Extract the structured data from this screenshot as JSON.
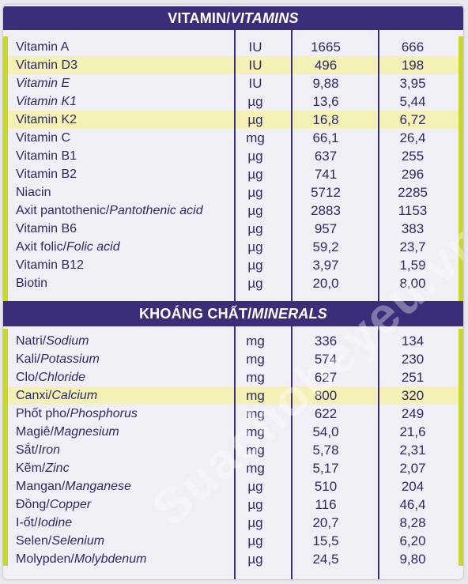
{
  "vitamins": {
    "title_main": "VITAMIN/",
    "title_italic": "VITAMINS",
    "rows": [
      {
        "name": "Vitamin A",
        "name_it": "",
        "unit": "IU",
        "v1": "1665",
        "v2": "666",
        "hl": false
      },
      {
        "name": "Vitamin D3",
        "name_it": "",
        "unit": "IU",
        "v1": "496",
        "v2": "198",
        "hl": true
      },
      {
        "name": "",
        "name_it": "Vitamin E",
        "unit": "IU",
        "v1": "9,88",
        "v2": "3,95",
        "hl": false
      },
      {
        "name": "",
        "name_it": "Vitamin K1",
        "unit": "µg",
        "v1": "13,6",
        "v2": "5,44",
        "hl": false
      },
      {
        "name": "Vitamin K2",
        "name_it": "",
        "unit": "µg",
        "v1": "16,8",
        "v2": "6,72",
        "hl": true
      },
      {
        "name": "Vitamin C",
        "name_it": "",
        "unit": "mg",
        "v1": "66,1",
        "v2": "26,4",
        "hl": false
      },
      {
        "name": "Vitamin B1",
        "name_it": "",
        "unit": "µg",
        "v1": "637",
        "v2": "255",
        "hl": false
      },
      {
        "name": "Vitamin B2",
        "name_it": "",
        "unit": "µg",
        "v1": "741",
        "v2": "296",
        "hl": false
      },
      {
        "name": "Niacin",
        "name_it": "",
        "unit": "µg",
        "v1": "5712",
        "v2": "2285",
        "hl": false
      },
      {
        "name": "Axit pantothenic/",
        "name_it": "Pantothenic acid",
        "unit": "µg",
        "v1": "2883",
        "v2": "1153",
        "hl": false
      },
      {
        "name": "Vitamin B6",
        "name_it": "",
        "unit": "µg",
        "v1": "957",
        "v2": "383",
        "hl": false
      },
      {
        "name": "Axit folic/",
        "name_it": "Folic acid",
        "unit": "µg",
        "v1": "59,2",
        "v2": "23,7",
        "hl": false
      },
      {
        "name": "Vitamin B12",
        "name_it": "",
        "unit": "µg",
        "v1": "3,97",
        "v2": "1,59",
        "hl": false
      },
      {
        "name": "Biotin",
        "name_it": "",
        "unit": "µg",
        "v1": "20,0",
        "v2": "8,00",
        "hl": false
      }
    ]
  },
  "minerals": {
    "title_main": "KHOÁNG CHẤT/",
    "title_italic": "MINERALS",
    "rows": [
      {
        "name": "Natri/",
        "name_it": "Sodium",
        "unit": "mg",
        "v1": "336",
        "v2": "134",
        "hl": false
      },
      {
        "name": "Kali/",
        "name_it": "Potassium",
        "unit": "mg",
        "v1": "574",
        "v2": "230",
        "hl": false
      },
      {
        "name": "Clo/",
        "name_it": "Chloride",
        "unit": "mg",
        "v1": "627",
        "v2": "251",
        "hl": false
      },
      {
        "name": "Canxi/",
        "name_it": "Calcium",
        "unit": "mg",
        "v1": "800",
        "v2": "320",
        "hl": true
      },
      {
        "name": "Phốt pho/",
        "name_it": "Phosphorus",
        "unit": "mg",
        "v1": "622",
        "v2": "249",
        "hl": false
      },
      {
        "name": "Magiê/",
        "name_it": "Magnesium",
        "unit": "mg",
        "v1": "54,0",
        "v2": "21,6",
        "hl": false
      },
      {
        "name": "Sắt/",
        "name_it": "Iron",
        "unit": "mg",
        "v1": "5,78",
        "v2": "2,31",
        "hl": false
      },
      {
        "name": "Kẽm/",
        "name_it": "Zinc",
        "unit": "mg",
        "v1": "5,17",
        "v2": "2,07",
        "hl": false
      },
      {
        "name": "Mangan/",
        "name_it": "Manganese",
        "unit": "µg",
        "v1": "510",
        "v2": "204",
        "hl": false
      },
      {
        "name": "Đồng/",
        "name_it": "Copper",
        "unit": "µg",
        "v1": "116",
        "v2": "46,4",
        "hl": false
      },
      {
        "name": "I-ốt/",
        "name_it": "Iodine",
        "unit": "µg",
        "v1": "20,7",
        "v2": "8,28",
        "hl": false
      },
      {
        "name": "Selen/",
        "name_it": "Selenium",
        "unit": "µg",
        "v1": "15,5",
        "v2": "6,20",
        "hl": false
      },
      {
        "name": "Molypden/",
        "name_it": "Molybdenum",
        "unit": "µg",
        "v1": "24,5",
        "v2": "9,80",
        "hl": false
      }
    ]
  },
  "watermark": "Suachobeyeu.vn",
  "colors": {
    "header": "#3b2d7a",
    "highlight": "#f4f0b6",
    "accent": "#c9d630",
    "text": "#2b2a63"
  }
}
